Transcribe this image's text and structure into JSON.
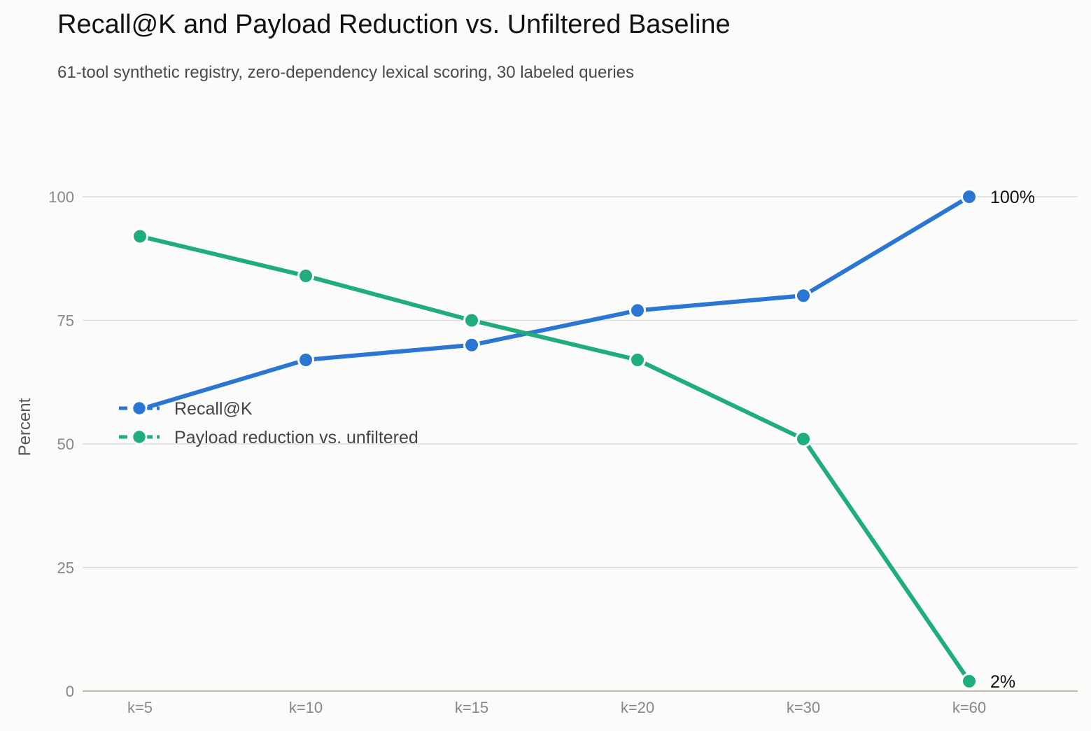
{
  "chart_data": {
    "type": "line",
    "title": "Recall@K and Payload Reduction vs. Unfiltered Baseline",
    "subtitle": "61-tool synthetic registry, zero-dependency lexical scoring, 30 labeled queries",
    "ylabel": "Percent",
    "xlabel": "",
    "categories": [
      "k=5",
      "k=10",
      "k=15",
      "k=20",
      "k=30",
      "k=60"
    ],
    "ylim": [
      0,
      100
    ],
    "yticks": [
      0,
      25,
      50,
      75,
      100
    ],
    "grid": true,
    "legend_position": "center-left",
    "series": [
      {
        "name": "Recall@K",
        "color": "#2a76d2",
        "values": [
          57,
          67,
          70,
          77,
          80,
          100
        ],
        "end_label": "100%"
      },
      {
        "name": "Payload reduction vs. unfiltered",
        "color": "#1fad7c",
        "values": [
          92,
          84,
          75,
          67,
          51,
          2
        ],
        "end_label": "2%"
      }
    ]
  }
}
